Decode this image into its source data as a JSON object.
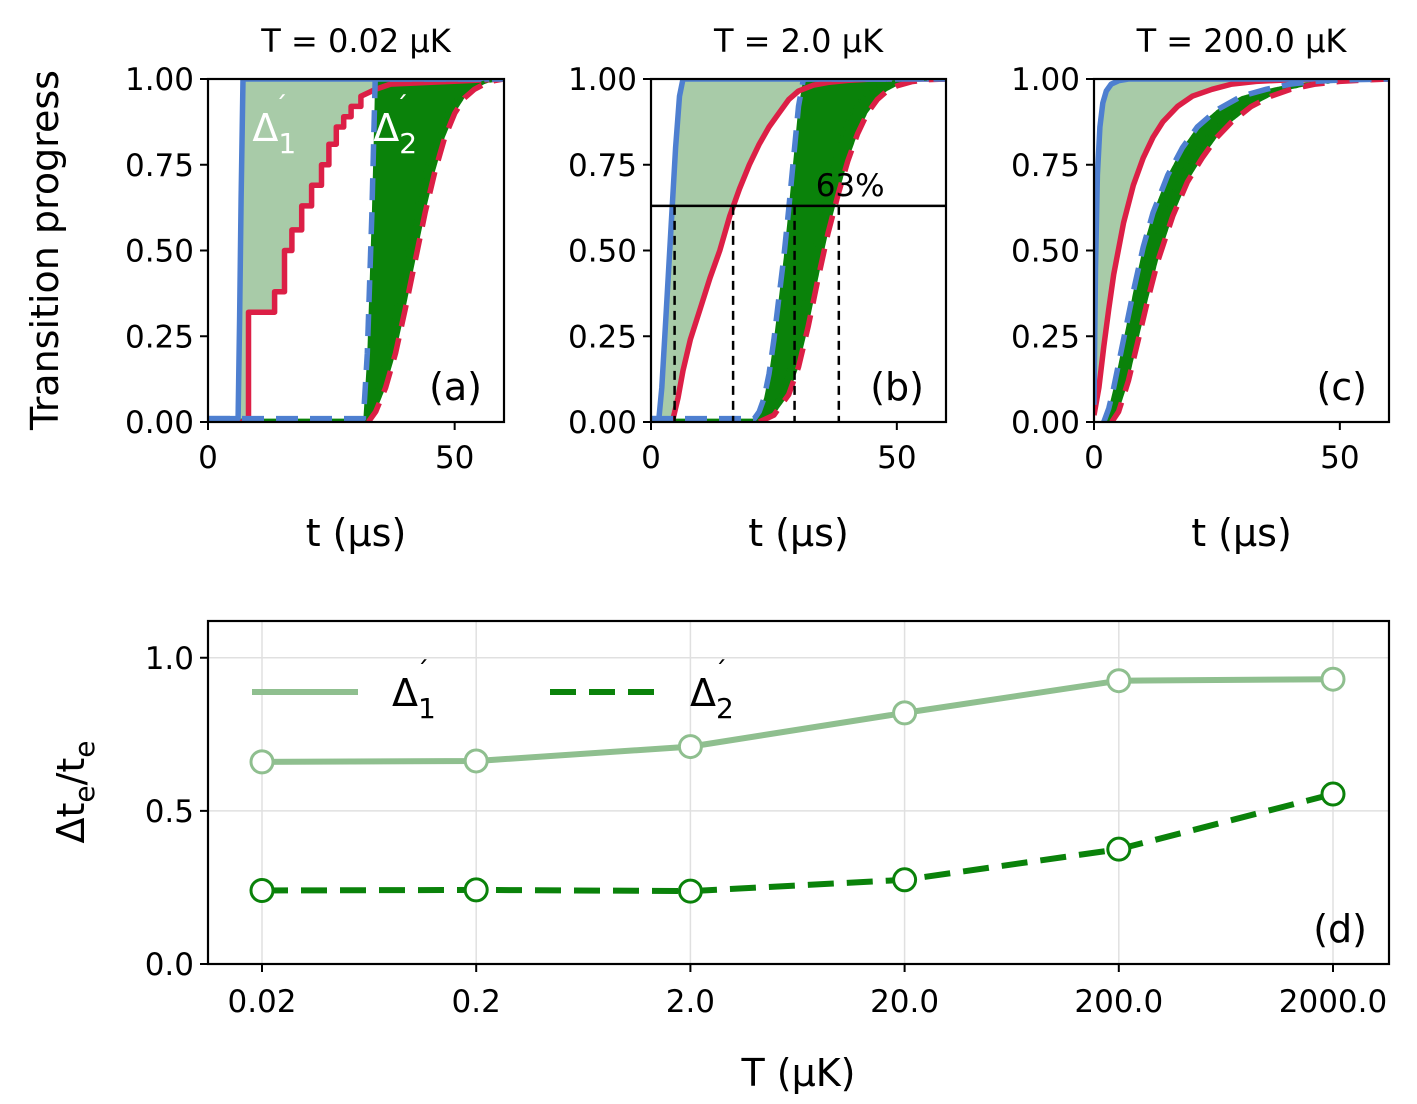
{
  "colors": {
    "blue": "#4e7fd0",
    "red": "#dc1f46",
    "light_green": "#8fbf8f",
    "light_fill": "#a8cba8",
    "dark_green": "#0a820a"
  },
  "chart_data": [
    {
      "id": "a",
      "type": "line",
      "title": "T = 0.02 μK",
      "panel_label": "(a)",
      "xlabel": "t (μs)",
      "ylabel": "Transition progress",
      "xlim": [
        0,
        60
      ],
      "ylim": [
        0,
        1
      ],
      "xticks": [
        0,
        50
      ],
      "yticks": [
        0.0,
        0.25,
        0.5,
        0.75,
        1.0
      ],
      "ytick_labels": [
        "0.00",
        "0.25",
        "0.50",
        "0.75",
        "1.00"
      ],
      "region_labels": [
        {
          "name": "delta1",
          "base": "Δ",
          "sub": "1",
          "prime": "´",
          "t": 9,
          "y": 0.86,
          "color": "#ffffff"
        },
        {
          "name": "delta2",
          "base": "Δ",
          "sub": "2",
          "prime": "´",
          "t": 33.5,
          "y": 0.86,
          "color": "#ffffff"
        }
      ],
      "series": [
        {
          "name": "blue-solid",
          "color": "#4e7fd0",
          "dash": "",
          "x": [
            0,
            6.1,
            6.4,
            6.7,
            7.1,
            60
          ],
          "y": [
            0.01,
            0.01,
            0.3,
            0.65,
            1.0,
            1.0
          ]
        },
        {
          "name": "red-solid",
          "color": "#dc1f46",
          "dash": "",
          "x": [
            0,
            8.2,
            8.2,
            13.5,
            13.5,
            15.5,
            15.5,
            17,
            17,
            19,
            19,
            21,
            21,
            23,
            23,
            24.5,
            24.5,
            26,
            26,
            27.5,
            27.5,
            29,
            29,
            31,
            31,
            34,
            37,
            60
          ],
          "y": [
            0,
            0,
            0.32,
            0.32,
            0.38,
            0.38,
            0.5,
            0.5,
            0.56,
            0.56,
            0.63,
            0.63,
            0.69,
            0.69,
            0.75,
            0.75,
            0.81,
            0.81,
            0.86,
            0.86,
            0.89,
            0.89,
            0.92,
            0.92,
            0.95,
            0.97,
            0.985,
            1.0
          ]
        },
        {
          "name": "blue-dashed",
          "color": "#4e7fd0",
          "dash": "22 12",
          "x": [
            0,
            31.5,
            32.3,
            33.2,
            33.9,
            60
          ],
          "y": [
            0.01,
            0.01,
            0.2,
            0.6,
            1.0,
            1.0
          ]
        },
        {
          "name": "green-dotted",
          "color": "#0a820a",
          "dash": "3 5",
          "x": [
            32,
            33,
            35,
            37,
            39,
            41,
            43,
            45,
            47,
            49,
            51,
            53,
            55,
            58,
            60
          ],
          "y": [
            0,
            0.04,
            0.13,
            0.26,
            0.41,
            0.55,
            0.68,
            0.78,
            0.86,
            0.92,
            0.955,
            0.975,
            0.988,
            0.996,
            1.0
          ]
        },
        {
          "name": "red-dashed",
          "color": "#dc1f46",
          "dash": "22 12",
          "x": [
            32.5,
            34,
            36,
            38,
            40,
            42,
            44,
            46,
            48,
            50,
            52,
            54,
            56,
            58,
            60
          ],
          "y": [
            0,
            0.03,
            0.1,
            0.2,
            0.33,
            0.47,
            0.61,
            0.73,
            0.83,
            0.9,
            0.945,
            0.97,
            0.985,
            0.995,
            1.0
          ]
        }
      ]
    },
    {
      "id": "b",
      "type": "line",
      "title": "T = 2.0 μK",
      "panel_label": "(b)",
      "xlabel": "t (μs)",
      "xlim": [
        0,
        60
      ],
      "ylim": [
        0,
        1
      ],
      "xticks": [
        0,
        50
      ],
      "yticks": [
        0.0,
        0.25,
        0.5,
        0.75,
        1.0
      ],
      "ytick_labels": [
        "0.00",
        "0.25",
        "0.50",
        "0.75",
        "1.00"
      ],
      "hline": {
        "y": 0.63,
        "label": "63%"
      },
      "vlines": [
        4.8,
        16.7,
        29.2,
        38.2
      ],
      "series": [
        {
          "name": "blue-solid",
          "color": "#4e7fd0",
          "dash": "",
          "x": [
            0,
            1.6,
            2.2,
            3,
            4,
            5,
            5.8,
            6.5,
            60
          ],
          "y": [
            0.01,
            0.01,
            0.1,
            0.3,
            0.55,
            0.8,
            0.95,
            1.0,
            1.0
          ]
        },
        {
          "name": "red-solid",
          "color": "#dc1f46",
          "dash": "",
          "x": [
            0,
            4.5,
            5.5,
            6.5,
            8,
            10,
            12,
            14,
            16,
            18,
            20,
            22,
            24,
            26,
            28,
            30,
            33,
            36,
            40,
            45,
            60
          ],
          "y": [
            0,
            0.01,
            0.07,
            0.15,
            0.24,
            0.33,
            0.42,
            0.5,
            0.6,
            0.68,
            0.75,
            0.81,
            0.86,
            0.9,
            0.94,
            0.965,
            0.982,
            0.99,
            0.996,
            1.0,
            1.0
          ]
        },
        {
          "name": "blue-dashed",
          "color": "#4e7fd0",
          "dash": "22 12",
          "x": [
            0,
            21,
            22,
            23,
            24,
            25,
            26,
            27,
            28,
            29,
            30,
            31,
            60
          ],
          "y": [
            0.01,
            0.01,
            0.03,
            0.07,
            0.14,
            0.24,
            0.36,
            0.48,
            0.62,
            0.77,
            0.92,
            1.0,
            1.0
          ]
        },
        {
          "name": "green-dotted",
          "color": "#0a820a",
          "dash": "3 5",
          "x": [
            21,
            24,
            27,
            30,
            32,
            34,
            36,
            38,
            40,
            42,
            44,
            46,
            48,
            50,
            53,
            56,
            60
          ],
          "y": [
            0,
            0.02,
            0.1,
            0.27,
            0.42,
            0.57,
            0.7,
            0.8,
            0.88,
            0.93,
            0.96,
            0.978,
            0.988,
            0.994,
            0.998,
            1.0,
            1.0
          ]
        },
        {
          "name": "red-dashed",
          "color": "#dc1f46",
          "dash": "22 12",
          "x": [
            22,
            25,
            28,
            30,
            32,
            34,
            36,
            38,
            40,
            42,
            44,
            46,
            48,
            50,
            53,
            56,
            60
          ],
          "y": [
            0,
            0.02,
            0.08,
            0.16,
            0.28,
            0.42,
            0.55,
            0.66,
            0.76,
            0.84,
            0.9,
            0.94,
            0.965,
            0.98,
            0.992,
            0.998,
            1.0
          ]
        }
      ]
    },
    {
      "id": "c",
      "type": "line",
      "title": "T = 200.0 μK",
      "panel_label": "(c)",
      "xlabel": "t (μs)",
      "xlim": [
        0,
        60
      ],
      "ylim": [
        0,
        1
      ],
      "xticks": [
        0,
        50
      ],
      "yticks": [
        0.0,
        0.25,
        0.5,
        0.75,
        1.0
      ],
      "ytick_labels": [
        "0.00",
        "0.25",
        "0.50",
        "0.75",
        "1.00"
      ],
      "series": [
        {
          "name": "blue-solid",
          "color": "#4e7fd0",
          "dash": "",
          "x": [
            0,
            0.3,
            0.7,
            1.2,
            1.8,
            2.5,
            3.5,
            5,
            7,
            10,
            60
          ],
          "y": [
            0.05,
            0.45,
            0.72,
            0.86,
            0.93,
            0.965,
            0.985,
            0.995,
            1.0,
            1.0,
            1.0
          ]
        },
        {
          "name": "red-solid",
          "color": "#dc1f46",
          "dash": "",
          "x": [
            0,
            1,
            2,
            3,
            4,
            6,
            8,
            10,
            12,
            14,
            17,
            20,
            24,
            28,
            33,
            40,
            50,
            60
          ],
          "y": [
            0.02,
            0.1,
            0.22,
            0.33,
            0.43,
            0.58,
            0.69,
            0.77,
            0.83,
            0.875,
            0.92,
            0.95,
            0.97,
            0.985,
            0.993,
            0.998,
            1.0,
            1.0
          ]
        },
        {
          "name": "blue-dashed",
          "color": "#4e7fd0",
          "dash": "22 12",
          "x": [
            2,
            3,
            4,
            6,
            8,
            10,
            12,
            15,
            18,
            21,
            25,
            30,
            35,
            40,
            45,
            50,
            60
          ],
          "y": [
            0,
            0.04,
            0.1,
            0.24,
            0.38,
            0.51,
            0.61,
            0.72,
            0.8,
            0.86,
            0.91,
            0.95,
            0.97,
            0.985,
            0.993,
            0.997,
            1.0
          ]
        },
        {
          "name": "green-dotted",
          "color": "#0a820a",
          "dash": "3 5",
          "x": [
            2.8,
            4,
            6,
            8,
            10,
            12,
            15,
            18,
            21,
            24,
            28,
            32,
            36,
            40,
            45,
            50,
            55,
            60
          ],
          "y": [
            0,
            0.04,
            0.15,
            0.28,
            0.41,
            0.52,
            0.64,
            0.73,
            0.8,
            0.85,
            0.9,
            0.935,
            0.96,
            0.975,
            0.987,
            0.994,
            0.998,
            1.0
          ]
        },
        {
          "name": "red-dashed",
          "color": "#dc1f46",
          "dash": "22 12",
          "x": [
            3.6,
            5,
            7,
            9,
            11,
            13,
            16,
            19,
            22,
            25,
            28,
            32,
            36,
            40,
            45,
            50,
            55,
            60
          ],
          "y": [
            0,
            0.03,
            0.12,
            0.24,
            0.36,
            0.47,
            0.6,
            0.7,
            0.77,
            0.83,
            0.875,
            0.92,
            0.95,
            0.97,
            0.985,
            0.993,
            0.997,
            1.0
          ]
        }
      ]
    },
    {
      "id": "d",
      "type": "line",
      "panel_label": "(d)",
      "xlabel": "T (μK)",
      "ylabel_base": "Δt",
      "ylabel_sub": "e",
      "ylabel_slash": "/t",
      "ylim": [
        0,
        1.12
      ],
      "yticks": [
        0.0,
        0.5,
        1.0
      ],
      "ytick_labels": [
        "0.0",
        "0.5",
        "1.0"
      ],
      "categories": [
        "0.02",
        "0.2",
        "2.0",
        "20.0",
        "200.0",
        "2000.0"
      ],
      "grid": true,
      "legend_position": "upper-left",
      "series": [
        {
          "name": "Δ1",
          "legend_base": "Δ",
          "legend_sub": "1",
          "legend_prime": "´",
          "color": "#8fbf8f",
          "dash": "",
          "values": [
            0.66,
            0.663,
            0.71,
            0.82,
            0.925,
            0.93
          ]
        },
        {
          "name": "Δ2",
          "legend_base": "Δ",
          "legend_sub": "2",
          "legend_prime": "´",
          "color": "#0a820a",
          "dash": "26 13",
          "values": [
            0.24,
            0.242,
            0.238,
            0.275,
            0.375,
            0.555
          ]
        }
      ]
    }
  ]
}
